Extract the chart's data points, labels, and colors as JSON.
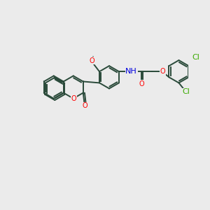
{
  "background_color": "#ebebeb",
  "bond_color": "#2a4a3a",
  "atom_colors": {
    "O": "#ff0000",
    "N": "#0000dd",
    "Cl": "#3aaa00",
    "C": "#2a4a3a"
  },
  "figsize": [
    3.0,
    3.0
  ],
  "dpi": 100,
  "bond_lw": 1.4,
  "ring_r": 22,
  "bl": 22
}
